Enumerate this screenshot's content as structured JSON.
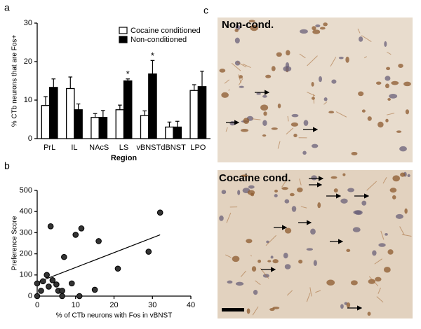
{
  "panel_labels": [
    "a",
    "b",
    "c"
  ],
  "images": [
    {
      "label": "Non-cond."
    },
    {
      "label": "Cocaine cond."
    }
  ],
  "chart_data": [
    {
      "type": "bar",
      "x_label": "Region",
      "y_label": "% CTb neurons that are Fos+",
      "categories": [
        "PrL",
        "IL",
        "NAcS",
        "LS",
        "vBNST",
        "dBNST",
        "LPO"
      ],
      "series": [
        {
          "name": "Cocaine conditioned",
          "color": "#ffffff",
          "values": [
            8.6,
            13,
            5.5,
            7.5,
            6,
            3,
            12.5
          ],
          "errors": [
            2.3,
            3,
            1,
            1.2,
            1.2,
            1.3,
            1.5
          ]
        },
        {
          "name": "Non-conditioned",
          "color": "#000000",
          "values": [
            13.3,
            7.5,
            5.5,
            15,
            16.8,
            3,
            13.5
          ],
          "errors": [
            2.2,
            1.5,
            1.8,
            0.5,
            3.5,
            1.5,
            4
          ]
        }
      ],
      "annotations": [
        {
          "text": "*",
          "category": "LS"
        },
        {
          "text": "*",
          "category": "vBNST"
        }
      ],
      "ylim": [
        0,
        30
      ],
      "yticks": [
        0,
        10,
        20,
        30
      ],
      "legend": "top-right"
    },
    {
      "type": "scatter",
      "x_label": "% of CTb  neurons with Fos in vBNST",
      "y_label": "Preference Score",
      "x": [
        0,
        0,
        1,
        1.5,
        2.5,
        3,
        3.5,
        4,
        5,
        5.5,
        6.5,
        6.5,
        7,
        9,
        10,
        11,
        11.5,
        15,
        16,
        21,
        29,
        32
      ],
      "values": [
        60,
        0,
        25,
        70,
        100,
        45,
        330,
        75,
        55,
        25,
        25,
        0,
        185,
        60,
        290,
        0,
        320,
        30,
        260,
        130,
        210,
        395
      ],
      "color": "#333333",
      "trend_line": {
        "x": [
          0,
          32
        ],
        "values": [
          65,
          290
        ]
      },
      "xlim": [
        0,
        40
      ],
      "xticks": [
        0,
        10,
        20,
        30,
        40
      ],
      "ylim": [
        0,
        500
      ],
      "yticks": [
        0,
        100,
        200,
        300,
        400,
        500
      ]
    }
  ]
}
